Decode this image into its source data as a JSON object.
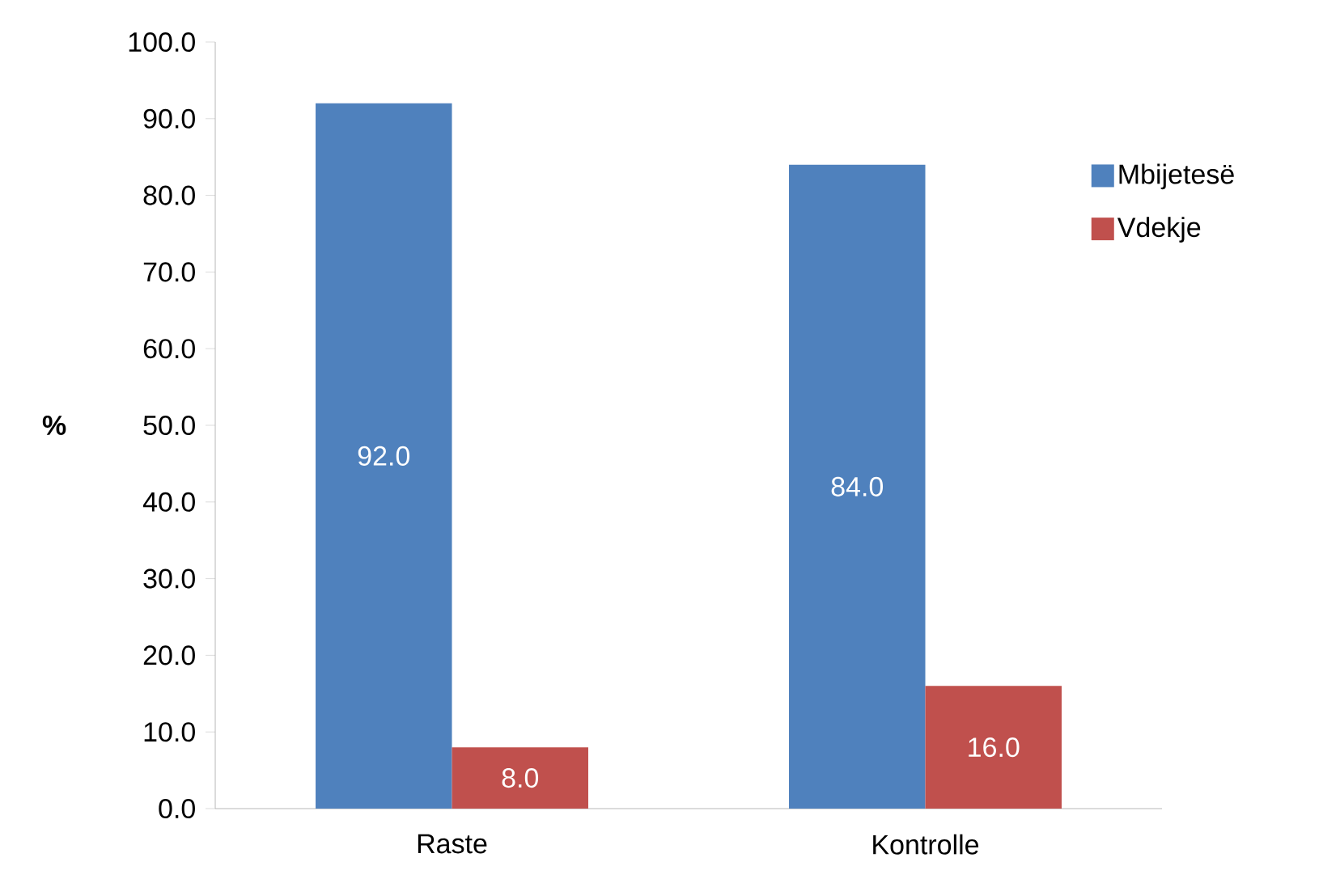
{
  "chart_data": {
    "type": "bar",
    "ylabel": "%",
    "categories": [
      "Raste",
      "Kontrolle"
    ],
    "series": [
      {
        "name": "Mbijetesë",
        "color": "#4f81bd",
        "values": [
          92.0,
          84.0
        ],
        "value_labels": [
          "92.0",
          "84.0"
        ]
      },
      {
        "name": "Vdekje",
        "color": "#c0504d",
        "values": [
          8.0,
          16.0
        ],
        "value_labels": [
          "8.0",
          "16.0"
        ]
      }
    ],
    "ylim": [
      0,
      100
    ],
    "yticks": [
      {
        "value": 0,
        "label": "0.0"
      },
      {
        "value": 10,
        "label": "10.0"
      },
      {
        "value": 20,
        "label": "20.0"
      },
      {
        "value": 30,
        "label": "30.0"
      },
      {
        "value": 40,
        "label": "40.0"
      },
      {
        "value": 50,
        "label": "50.0"
      },
      {
        "value": 60,
        "label": "60.0"
      },
      {
        "value": 70,
        "label": "70.0"
      },
      {
        "value": 80,
        "label": "80.0"
      },
      {
        "value": 90,
        "label": "90.0"
      },
      {
        "value": 100,
        "label": "100.0"
      }
    ],
    "grid": false,
    "legend": "right"
  }
}
